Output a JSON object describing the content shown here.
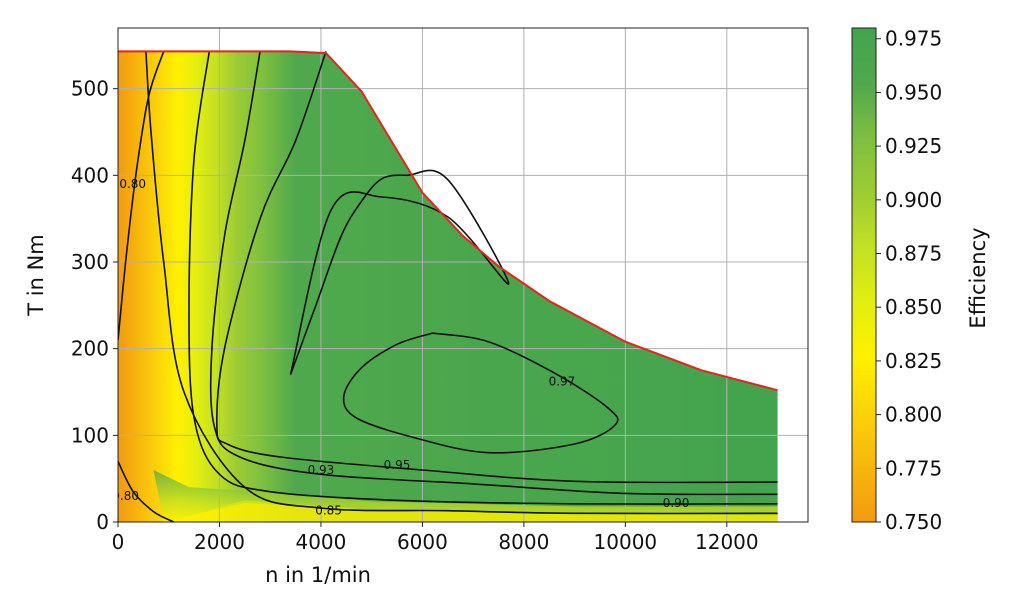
{
  "chart_data": {
    "type": "heatmap",
    "subtype": "efficiency-map-filled-contour",
    "xlabel": "n in 1/min",
    "ylabel": "T in Nm",
    "xlim": [
      0,
      13600
    ],
    "ylim": [
      0,
      570
    ],
    "xticks": [
      0,
      2000,
      4000,
      6000,
      8000,
      10000,
      12000
    ],
    "yticks": [
      0,
      100,
      200,
      300,
      400,
      500
    ],
    "grid": true,
    "colorbar": {
      "label": "Efficiency",
      "range": [
        0.75,
        0.98
      ],
      "ticks": [
        0.75,
        0.775,
        0.8,
        0.825,
        0.85,
        0.875,
        0.9,
        0.925,
        0.95,
        0.975
      ],
      "tick_labels": [
        "0.750",
        "0.775",
        "0.800",
        "0.825",
        "0.850",
        "0.875",
        "0.900",
        "0.925",
        "0.950",
        "0.975"
      ],
      "colors": [
        "#f29a10",
        "#f7b60c",
        "#fbd30a",
        "#fff000",
        "#e2ee10",
        "#c2e024",
        "#9ccc34",
        "#7dbf40",
        "#4fa84c",
        "#43a44e"
      ]
    },
    "max_torque_envelope": {
      "color": "#e8231e",
      "n": [
        0,
        3400,
        4100,
        4800,
        6000,
        6800,
        7500,
        8500,
        10000,
        11500,
        13000
      ],
      "T": [
        543,
        543,
        541,
        497,
        380,
        330,
        295,
        255,
        208,
        175,
        152
      ]
    },
    "contours": [
      {
        "level": "0.80",
        "n": [
          0,
          150,
          350,
          600,
          900
        ],
        "T": [
          210,
          300,
          400,
          490,
          543
        ],
        "label_at": [
          290,
          390
        ]
      },
      {
        "level": "0.80",
        "n": [
          0,
          300,
          700,
          1100
        ],
        "T": [
          70,
          35,
          12,
          0
        ],
        "label_at": [
          150,
          30
        ]
      },
      {
        "level": "0.85",
        "n": [
          550,
          650,
          900,
          1300,
          2500,
          4000,
          6500,
          9000,
          13000
        ],
        "T": [
          543,
          450,
          300,
          150,
          40,
          16,
          13,
          10,
          10
        ],
        "label_at": [
          4150,
          13
        ]
      },
      {
        "level": "0.90",
        "n": [
          1800,
          1500,
          1400,
          1500,
          2000,
          3000,
          5500,
          9000,
          13000
        ],
        "T": [
          543,
          420,
          250,
          120,
          55,
          35,
          25,
          21,
          21
        ],
        "label_at": [
          11000,
          22
        ]
      },
      {
        "level": "0.93",
        "n": [
          2800,
          2500,
          2100,
          1850,
          1900,
          2400,
          4000,
          7000,
          10000,
          13000
        ],
        "T": [
          543,
          440,
          330,
          200,
          110,
          75,
          55,
          44,
          33,
          32
        ],
        "label_at": [
          4000,
          60
        ]
      },
      {
        "level": "0.95",
        "n": [
          4100,
          3500,
          2800,
          2100,
          1950,
          2150,
          3200,
          6000,
          9000,
          13000
        ],
        "T": [
          543,
          440,
          350,
          200,
          110,
          90,
          75,
          60,
          47,
          46
        ],
        "label_at": [
          5500,
          66
        ]
      },
      {
        "level": "0.97",
        "n": [
          6200,
          5500,
          4800,
          4450,
          4700,
          5800,
          7300,
          9000,
          9800,
          9650,
          8600,
          7300,
          6200
        ],
        "T": [
          218,
          205,
          178,
          145,
          120,
          98,
          80,
          90,
          112,
          132,
          172,
          208,
          218
        ],
        "label_at": [
          8750,
          162
        ]
      },
      {
        "level": "0.95-inner",
        "n": [
          3400,
          3900,
          4400,
          4800,
          5200,
          5700,
          6500,
          7700,
          6500,
          5200,
          4200,
          3400
        ],
        "T": [
          170,
          250,
          330,
          370,
          396,
          400,
          395,
          275,
          352,
          375,
          360,
          170
        ],
        "label_at": null
      }
    ],
    "regions": [
      {
        "level_upper": 0.775,
        "n": [
          0,
          0,
          600,
          800,
          300,
          0
        ],
        "T": [
          0,
          543,
          543,
          420,
          120,
          0
        ]
      },
      {
        "level_upper": 0.8,
        "n": [
          0,
          600,
          1000,
          1200,
          900,
          1500,
          0
        ],
        "T": [
          0,
          543,
          543,
          300,
          100,
          0,
          0
        ]
      }
    ]
  }
}
